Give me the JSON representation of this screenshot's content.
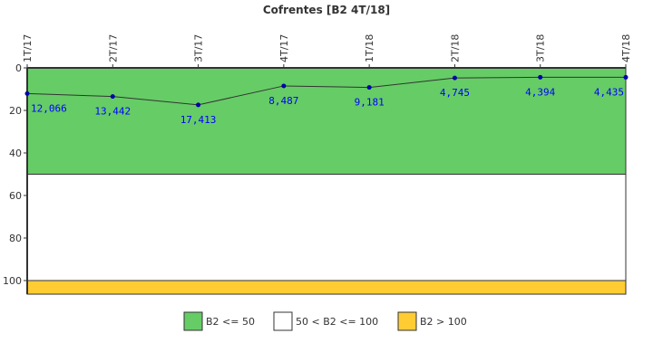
{
  "chart_data": {
    "type": "line",
    "title": "Cofrentes [B2 4T/18]",
    "categories": [
      "1T/17",
      "2T/17",
      "3T/17",
      "4T/17",
      "1T/18",
      "2T/18",
      "3T/18",
      "4T/18"
    ],
    "values": [
      12.066,
      13.442,
      17.413,
      8.487,
      9.181,
      4.745,
      4.394,
      4.435
    ],
    "value_labels": [
      "12,066",
      "13,442",
      "17,413",
      "8,487",
      "9,181",
      "4,745",
      "4,394",
      "4,435"
    ],
    "ylim": [
      0,
      106.4
    ],
    "y_inverted": true,
    "yticks": [
      0,
      20,
      40,
      60,
      80,
      100
    ],
    "bands": [
      {
        "from": 0,
        "to": 50,
        "color": "#66cc66",
        "label": "B2 <= 50"
      },
      {
        "from": 50,
        "to": 100,
        "color": "#ffffff",
        "label": "50 < B2 <= 100"
      },
      {
        "from": 100,
        "to": 106.4,
        "color": "#ffcc33",
        "label": "B2 > 100"
      }
    ],
    "line_color": "#333333",
    "point_color": "#0000aa",
    "legend_position": "bottom"
  }
}
